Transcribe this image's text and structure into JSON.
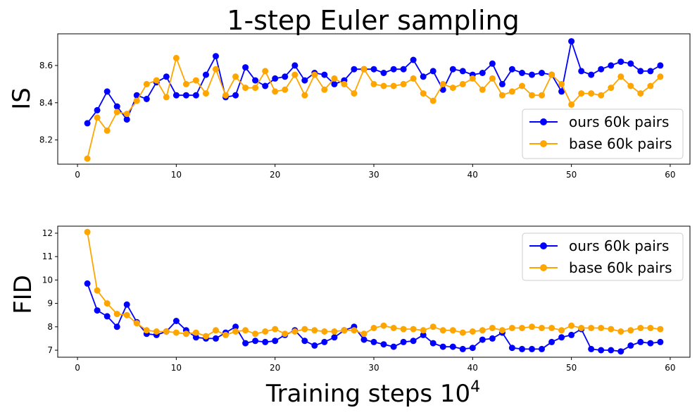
{
  "chart_data": [
    {
      "type": "line",
      "title": "1-step Euler sampling",
      "ylabel": "IS",
      "xlabel": "",
      "xlim": [
        -2,
        62
      ],
      "ylim": [
        8.07,
        8.77
      ],
      "xticks": [
        0,
        10,
        20,
        30,
        40,
        50,
        60
      ],
      "yticks": [
        8.2,
        8.4,
        8.6
      ],
      "ytick_labels": [
        "8.2",
        "8.4",
        "8.6"
      ],
      "legend_position": "lower-right",
      "x": [
        1,
        2,
        3,
        4,
        5,
        6,
        7,
        8,
        9,
        10,
        11,
        12,
        13,
        14,
        15,
        16,
        17,
        18,
        19,
        20,
        21,
        22,
        23,
        24,
        25,
        26,
        27,
        28,
        29,
        30,
        31,
        32,
        33,
        34,
        35,
        36,
        37,
        38,
        39,
        40,
        41,
        42,
        43,
        44,
        45,
        46,
        47,
        48,
        49,
        50,
        51,
        52,
        53,
        54,
        55,
        56,
        57,
        58,
        59
      ],
      "series": [
        {
          "name": "ours 60k pairs",
          "color": "#0000ff",
          "values": [
            8.29,
            8.36,
            8.46,
            8.38,
            8.31,
            8.44,
            8.42,
            8.51,
            8.54,
            8.44,
            8.44,
            8.44,
            8.55,
            8.65,
            8.43,
            8.44,
            8.59,
            8.52,
            8.49,
            8.53,
            8.54,
            8.6,
            8.52,
            8.56,
            8.55,
            8.5,
            8.52,
            8.58,
            8.58,
            8.58,
            8.56,
            8.58,
            8.58,
            8.63,
            8.54,
            8.57,
            8.47,
            8.58,
            8.57,
            8.55,
            8.56,
            8.61,
            8.5,
            8.58,
            8.56,
            8.55,
            8.56,
            8.55,
            8.46,
            8.73,
            8.57,
            8.55,
            8.58,
            8.6,
            8.62,
            8.61,
            8.57,
            8.57,
            8.6
          ]
        },
        {
          "name": "base 60k pairs",
          "color": "#ffa500",
          "values": [
            8.1,
            8.32,
            8.25,
            8.35,
            8.34,
            8.41,
            8.5,
            8.52,
            8.43,
            8.64,
            8.5,
            8.52,
            8.45,
            8.58,
            8.44,
            8.54,
            8.48,
            8.48,
            8.57,
            8.46,
            8.47,
            8.55,
            8.44,
            8.55,
            8.47,
            8.53,
            8.5,
            8.45,
            8.58,
            8.5,
            8.49,
            8.49,
            8.5,
            8.53,
            8.45,
            8.41,
            8.5,
            8.48,
            8.5,
            8.53,
            8.47,
            8.53,
            8.44,
            8.46,
            8.49,
            8.44,
            8.44,
            8.55,
            8.5,
            8.39,
            8.45,
            8.45,
            8.44,
            8.48,
            8.54,
            8.49,
            8.45,
            8.49,
            8.54
          ]
        }
      ]
    },
    {
      "type": "line",
      "title": "",
      "ylabel": "FID",
      "xlabel": "Training steps 10",
      "xlabel_sup": "4",
      "xlim": [
        -2,
        62
      ],
      "ylim": [
        6.7,
        12.3
      ],
      "xticks": [
        0,
        10,
        20,
        30,
        40,
        50,
        60
      ],
      "yticks": [
        7,
        8,
        9,
        10,
        11,
        12
      ],
      "ytick_labels": [
        "7",
        "8",
        "9",
        "10",
        "11",
        "12"
      ],
      "legend_position": "upper-right",
      "x": [
        1,
        2,
        3,
        4,
        5,
        6,
        7,
        8,
        9,
        10,
        11,
        12,
        13,
        14,
        15,
        16,
        17,
        18,
        19,
        20,
        21,
        22,
        23,
        24,
        25,
        26,
        27,
        28,
        29,
        30,
        31,
        32,
        33,
        34,
        35,
        36,
        37,
        38,
        39,
        40,
        41,
        42,
        43,
        44,
        45,
        46,
        47,
        48,
        49,
        50,
        51,
        52,
        53,
        54,
        55,
        56,
        57,
        58,
        59
      ],
      "series": [
        {
          "name": "ours 60k pairs",
          "color": "#0000ff",
          "values": [
            9.85,
            8.7,
            8.45,
            8.0,
            8.95,
            8.2,
            7.7,
            7.65,
            7.8,
            8.25,
            7.85,
            7.55,
            7.5,
            7.5,
            7.75,
            8.0,
            7.3,
            7.4,
            7.35,
            7.4,
            7.65,
            7.85,
            7.4,
            7.2,
            7.35,
            7.55,
            7.85,
            8.0,
            7.45,
            7.35,
            7.25,
            7.15,
            7.35,
            7.4,
            7.65,
            7.3,
            7.15,
            7.15,
            7.05,
            7.1,
            7.45,
            7.5,
            7.75,
            7.1,
            7.05,
            7.05,
            7.05,
            7.35,
            7.55,
            7.65,
            7.9,
            7.05,
            7.0,
            7.0,
            6.95,
            7.2,
            7.35,
            7.3,
            7.35
          ]
        },
        {
          "name": "base 60k pairs",
          "color": "#ffa500",
          "values": [
            12.05,
            9.55,
            9.0,
            8.55,
            8.5,
            8.15,
            7.85,
            7.8,
            7.8,
            7.75,
            7.7,
            7.75,
            7.6,
            7.85,
            7.65,
            7.8,
            7.85,
            7.7,
            7.8,
            7.9,
            7.7,
            7.8,
            7.9,
            7.85,
            7.8,
            7.8,
            7.85,
            7.85,
            7.7,
            7.95,
            8.05,
            7.95,
            7.9,
            7.9,
            7.85,
            8.0,
            7.85,
            7.85,
            7.75,
            7.8,
            7.85,
            7.95,
            7.85,
            7.95,
            7.95,
            8.0,
            7.95,
            7.95,
            7.85,
            8.05,
            7.95,
            7.95,
            7.95,
            7.9,
            7.8,
            7.85,
            7.95,
            7.95,
            7.9
          ]
        }
      ]
    }
  ]
}
